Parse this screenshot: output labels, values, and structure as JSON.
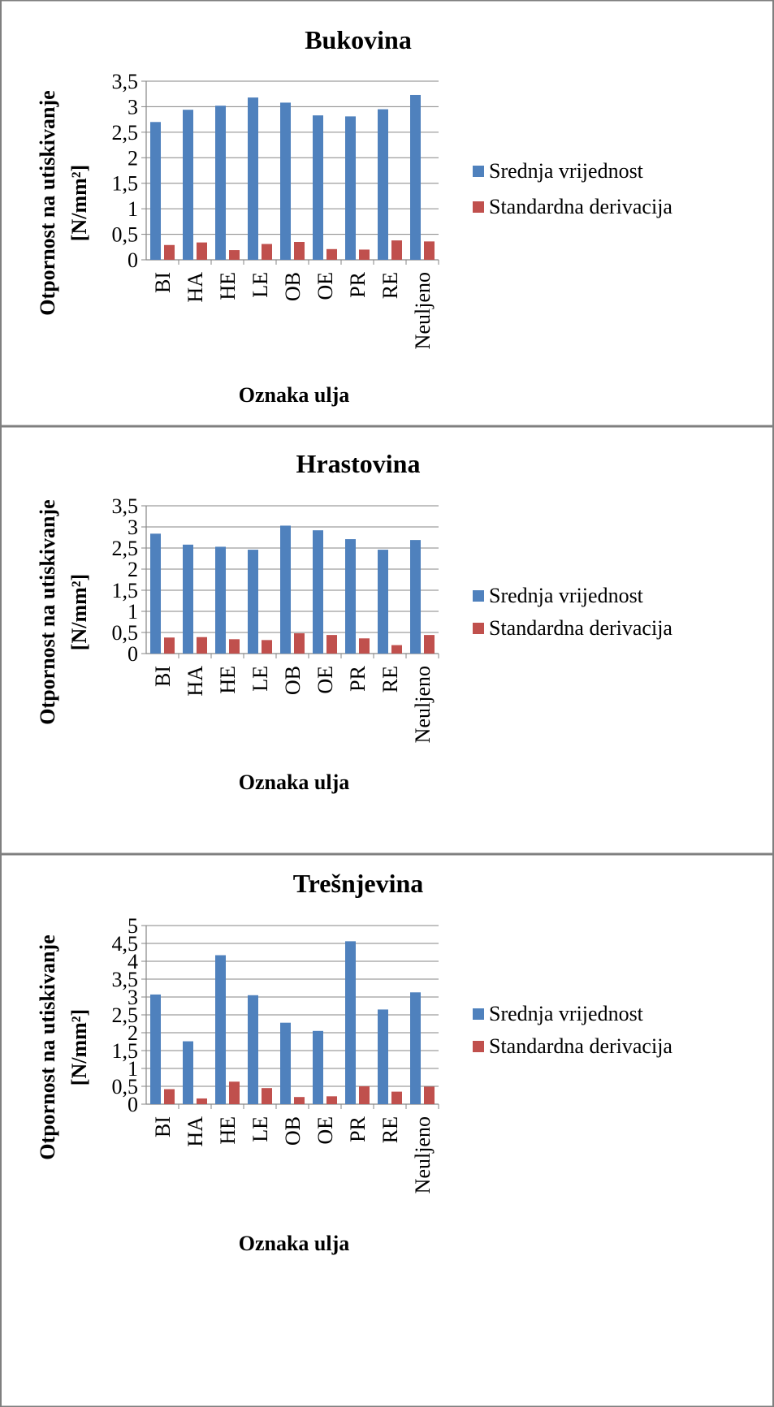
{
  "colors": {
    "series_1": "#4f81bd",
    "series_2": "#c0504d",
    "grid": "#868686",
    "panel_border": "#7f7f7f",
    "text": "#000000"
  },
  "chart_data": [
    {
      "type": "bar",
      "title": "Bukovina",
      "xlabel": "Oznaka ulja",
      "ylabel": [
        "Otpornost na utiskivanje",
        "[N/mm²]"
      ],
      "categories": [
        "BI",
        "HA",
        "HE",
        "LE",
        "OB",
        "OE",
        "PR",
        "RE",
        "Neuljeno"
      ],
      "ylim": [
        0,
        3.5
      ],
      "yticks": [
        "0",
        "0,5",
        "1",
        "1,5",
        "2",
        "2,5",
        "3",
        "3,5"
      ],
      "grid": true,
      "legend_position": "right",
      "series": [
        {
          "name": "Srednja vrijednost",
          "values": [
            2.7,
            2.94,
            3.02,
            3.18,
            3.08,
            2.83,
            2.81,
            2.95,
            3.23
          ]
        },
        {
          "name": "Standardna derivacija",
          "values": [
            0.29,
            0.34,
            0.19,
            0.31,
            0.35,
            0.21,
            0.2,
            0.38,
            0.36
          ]
        }
      ]
    },
    {
      "type": "bar",
      "title": "Hrastovina",
      "xlabel": "Oznaka ulja",
      "ylabel": [
        "Otpornost na utiskivanje",
        "[N/mm²]"
      ],
      "categories": [
        "BI",
        "HA",
        "HE",
        "LE",
        "OB",
        "OE",
        "PR",
        "RE",
        "Neuljeno"
      ],
      "ylim": [
        0,
        3.5
      ],
      "yticks": [
        "0",
        "0,5",
        "1",
        "1,5",
        "2",
        "2,5",
        "3",
        "3,5"
      ],
      "grid": true,
      "legend_position": "right",
      "series": [
        {
          "name": "Srednja vrijednost",
          "values": [
            2.84,
            2.58,
            2.53,
            2.46,
            3.03,
            2.92,
            2.71,
            2.46,
            2.69
          ]
        },
        {
          "name": "Standardna derivacija",
          "values": [
            0.38,
            0.39,
            0.34,
            0.32,
            0.48,
            0.44,
            0.36,
            0.2,
            0.44
          ]
        }
      ]
    },
    {
      "type": "bar",
      "title": "Trešnjevina",
      "xlabel": "Oznaka ulja",
      "ylabel": [
        "Otpornost na utiskivanje",
        "[N/mm²]"
      ],
      "categories": [
        "BI",
        "HA",
        "HE",
        "LE",
        "OB",
        "OE",
        "PR",
        "RE",
        "Neuljeno"
      ],
      "ylim": [
        0,
        5
      ],
      "yticks": [
        "0",
        "0,5",
        "1",
        "1,5",
        "2",
        "2,5",
        "3",
        "3,5",
        "4",
        "4,5",
        "5"
      ],
      "grid": true,
      "legend_position": "right",
      "series": [
        {
          "name": "Srednja vrijednost",
          "values": [
            3.07,
            1.76,
            4.17,
            3.05,
            2.28,
            2.05,
            4.56,
            2.65,
            3.13
          ]
        },
        {
          "name": "Standardna derivacija",
          "values": [
            0.42,
            0.16,
            0.63,
            0.45,
            0.2,
            0.22,
            0.5,
            0.35,
            0.49
          ]
        }
      ]
    }
  ]
}
